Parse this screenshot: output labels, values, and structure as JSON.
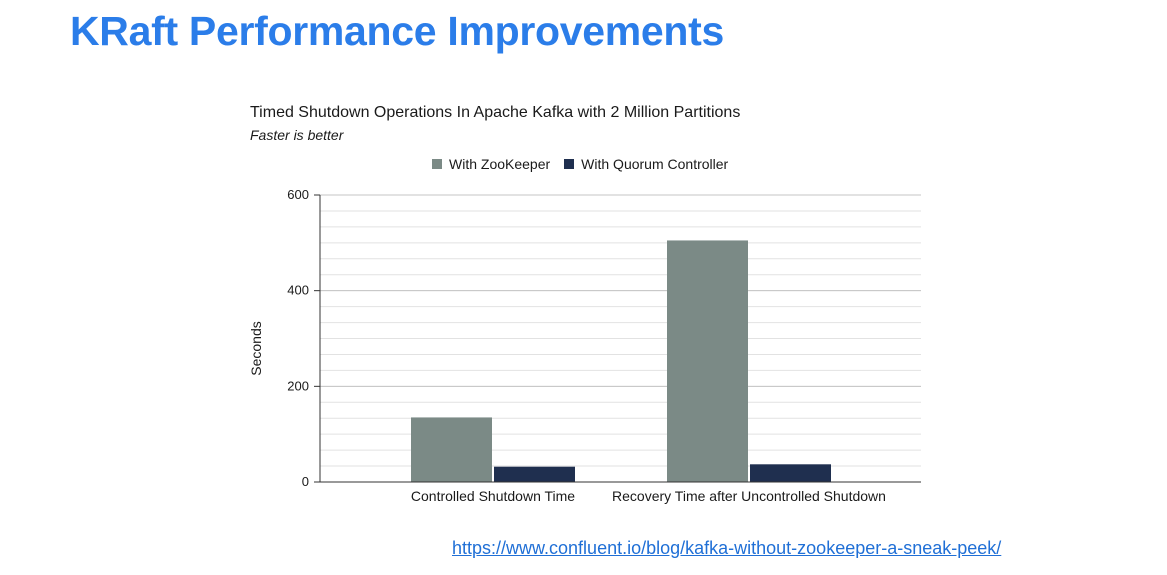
{
  "slide": {
    "title": "KRaft Performance Improvements",
    "link_text": "https://www.confluent.io/blog/kafka-without-zookeeper-a-sneak-peek/"
  },
  "colors": {
    "title": "#2b7de9",
    "zookeeper": "#7b8a86",
    "quorum": "#1f2f4f",
    "link": "#1f6fd6"
  },
  "chart_data": {
    "type": "bar",
    "title": "Timed Shutdown Operations In Apache Kafka with 2 Million Partitions",
    "subtitle": "Faster is better",
    "xlabel": "",
    "ylabel": "Seconds",
    "categories": [
      "Controlled Shutdown Time",
      "Recovery Time after Uncontrolled Shutdown"
    ],
    "series": [
      {
        "name": "With ZooKeeper",
        "values": [
          135,
          505
        ]
      },
      {
        "name": "With Quorum Controller",
        "values": [
          32,
          37
        ]
      }
    ],
    "ylim": [
      0,
      600
    ],
    "yticks": [
      0,
      200,
      400,
      600
    ],
    "minor_grid_step": 33.33,
    "grid": true,
    "legend_position": "top"
  }
}
